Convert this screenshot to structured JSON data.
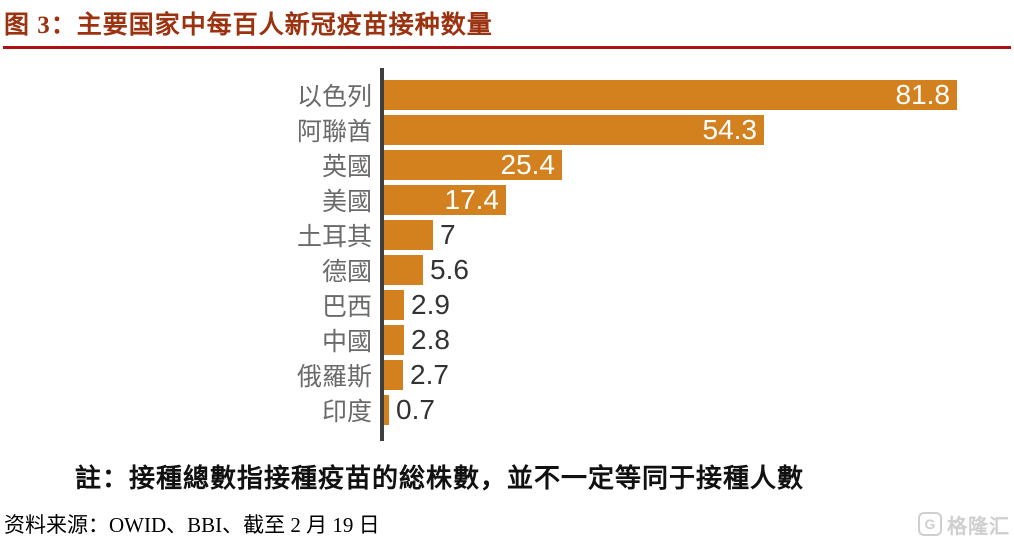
{
  "figure": {
    "label": "图 3：",
    "title": "图 3：主要国家中每百人新冠疫苗接种数量",
    "note": "註：接種總數指接種疫苗的総株數，並不一定等同于接種人數",
    "source": "资料来源：OWID、BBI、截至 2 月 19 日"
  },
  "chart_data": {
    "type": "bar",
    "orientation": "horizontal",
    "title": "主要国家中每百人新冠疫苗接种数量",
    "categories": [
      "以色列",
      "阿聯酋",
      "英國",
      "美國",
      "土耳其",
      "德國",
      "巴西",
      "中國",
      "俄羅斯",
      "印度"
    ],
    "values": [
      81.8,
      54.3,
      25.4,
      17.4,
      7,
      5.6,
      2.9,
      2.8,
      2.7,
      0.7
    ],
    "value_labels": [
      "81.8",
      "54.3",
      "25.4",
      "17.4",
      "7",
      "5.6",
      "2.9",
      "2.8",
      "2.7",
      "0.7"
    ],
    "xlabel": "",
    "ylabel": "",
    "xlim": [
      0,
      90
    ],
    "grid": false,
    "legend": false,
    "bar_color": "#D3801E",
    "axis_color": "#3F3F3F",
    "value_label_inside_color": "#FFFFFF",
    "value_label_outside_color": "#333333",
    "category_label_color": "#6A6A6A"
  },
  "colors": {
    "title": "#9B3210",
    "rule": "#AE1111",
    "note": "#111111"
  },
  "logo": {
    "mark": "G",
    "text": "格隆汇",
    "color": "#CFCFCF"
  }
}
